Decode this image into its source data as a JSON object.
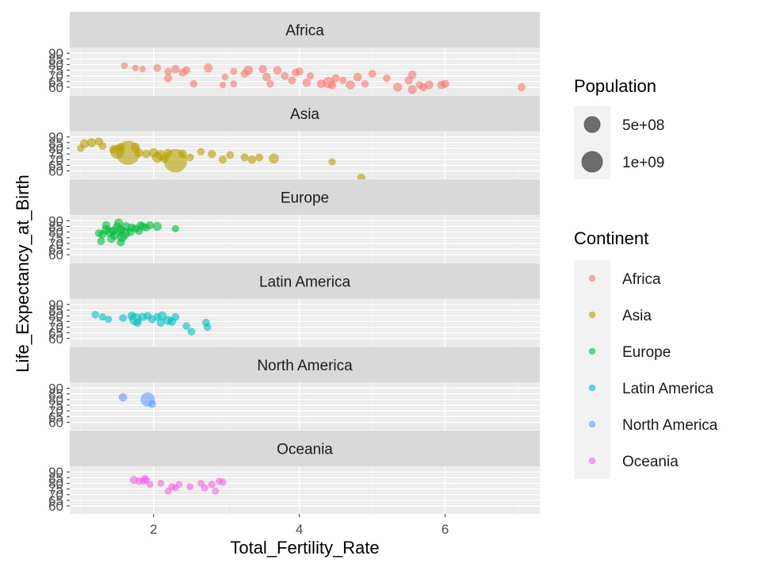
{
  "chart_data": {
    "type": "scatter",
    "facet_by": "Continent",
    "xlabel": "Total_Fertility_Rate",
    "ylabel": "Life_Expectancy_at_Birth",
    "xlim": [
      0.85,
      7.3
    ],
    "x_ticks": [
      2,
      4,
      6
    ],
    "ylim": [
      53,
      95
    ],
    "y_ticks": [
      60,
      65,
      70,
      75,
      80,
      85,
      90
    ],
    "y_tick_labels": [
      "60",
      "65",
      "70",
      "75",
      "80",
      "85",
      "90"
    ],
    "point_alpha": 0.6,
    "colors": {
      "Africa": "#F8766D",
      "Asia": "#B79F00",
      "Europe": "#00BA38",
      "Latin America": "#00BFC4",
      "North America": "#619CFF",
      "Oceania": "#F564E3"
    },
    "facets": [
      {
        "name": "Africa",
        "points": [
          [
            1.6,
            79,
            10
          ],
          [
            1.75,
            77,
            8
          ],
          [
            1.85,
            76,
            7
          ],
          [
            2.05,
            77,
            30
          ],
          [
            2.2,
            74,
            25
          ],
          [
            2.3,
            76,
            40
          ],
          [
            2.2,
            68,
            40
          ],
          [
            2.4,
            73,
            35
          ],
          [
            2.45,
            75,
            30
          ],
          [
            2.55,
            63,
            25
          ],
          [
            2.75,
            77,
            60
          ],
          [
            2.95,
            62,
            10
          ],
          [
            2.98,
            69,
            12
          ],
          [
            3.1,
            63,
            15
          ],
          [
            3.1,
            74,
            15
          ],
          [
            3.25,
            72,
            40
          ],
          [
            3.3,
            75,
            70
          ],
          [
            3.5,
            76,
            40
          ],
          [
            3.55,
            69,
            50
          ],
          [
            3.6,
            63,
            25
          ],
          [
            3.7,
            75,
            45
          ],
          [
            3.8,
            70,
            30
          ],
          [
            3.9,
            66,
            35
          ],
          [
            3.95,
            73,
            30
          ],
          [
            4.0,
            74,
            35
          ],
          [
            4.1,
            64,
            40
          ],
          [
            4.15,
            70,
            20
          ],
          [
            4.3,
            63,
            50
          ],
          [
            4.45,
            62,
            40
          ],
          [
            4.5,
            68,
            35
          ],
          [
            4.6,
            66,
            20
          ],
          [
            4.7,
            62,
            60
          ],
          [
            4.8,
            69,
            50
          ],
          [
            4.9,
            63,
            25
          ],
          [
            5.0,
            72,
            30
          ],
          [
            5.2,
            68,
            25
          ],
          [
            5.35,
            60,
            60
          ],
          [
            5.5,
            66,
            40
          ],
          [
            5.55,
            58,
            60
          ],
          [
            5.55,
            71,
            45
          ],
          [
            5.65,
            62,
            25
          ],
          [
            5.7,
            60,
            35
          ],
          [
            5.78,
            62,
            55
          ],
          [
            5.95,
            62,
            50
          ],
          [
            6.0,
            63,
            40
          ],
          [
            7.05,
            60,
            30
          ],
          [
            4.4,
            64,
            150
          ]
        ]
      },
      {
        "name": "Asia",
        "points": [
          [
            1.05,
            84,
            60
          ],
          [
            1.15,
            85,
            60
          ],
          [
            1.25,
            86,
            40
          ],
          [
            1.45,
            79,
            40
          ],
          [
            1.5,
            77,
            300
          ],
          [
            1.65,
            76,
            1400
          ],
          [
            1.75,
            81,
            60
          ],
          [
            1.8,
            76,
            60
          ],
          [
            1.9,
            75,
            40
          ],
          [
            2.0,
            76,
            80
          ],
          [
            2.05,
            72,
            120
          ],
          [
            2.1,
            74,
            100
          ],
          [
            2.15,
            71,
            50
          ],
          [
            2.2,
            76,
            40
          ],
          [
            2.3,
            69,
            1300
          ],
          [
            2.4,
            75,
            50
          ],
          [
            2.5,
            72,
            30
          ],
          [
            2.65,
            77,
            25
          ],
          [
            2.8,
            75,
            40
          ],
          [
            2.95,
            70,
            35
          ],
          [
            3.05,
            74,
            30
          ],
          [
            3.25,
            72,
            35
          ],
          [
            3.35,
            70,
            40
          ],
          [
            3.45,
            72,
            30
          ],
          [
            3.65,
            71,
            100
          ],
          [
            4.45,
            68,
            20
          ],
          [
            4.85,
            54,
            40
          ],
          [
            1.0,
            80,
            20
          ],
          [
            1.3,
            82,
            30
          ],
          [
            1.55,
            81,
            50
          ]
        ]
      },
      {
        "name": "Europe",
        "points": [
          [
            1.25,
            79,
            30
          ],
          [
            1.3,
            78,
            40
          ],
          [
            1.35,
            82,
            60
          ],
          [
            1.4,
            80,
            80
          ],
          [
            1.42,
            74,
            40
          ],
          [
            1.45,
            81,
            50
          ],
          [
            1.5,
            84,
            70
          ],
          [
            1.52,
            88,
            60
          ],
          [
            1.55,
            82,
            50
          ],
          [
            1.57,
            76,
            100
          ],
          [
            1.6,
            79,
            145
          ],
          [
            1.62,
            85,
            50
          ],
          [
            1.68,
            80,
            40
          ],
          [
            1.7,
            84,
            40
          ],
          [
            1.75,
            83,
            40
          ],
          [
            1.8,
            81,
            30
          ],
          [
            1.82,
            86,
            30
          ],
          [
            1.85,
            85,
            40
          ],
          [
            1.9,
            84,
            30
          ],
          [
            1.95,
            86,
            40
          ],
          [
            2.05,
            85,
            60
          ],
          [
            2.3,
            83,
            20
          ],
          [
            1.47,
            77,
            50
          ],
          [
            1.35,
            86,
            40
          ],
          [
            1.28,
            72,
            30
          ],
          [
            1.55,
            71,
            40
          ]
        ]
      },
      {
        "name": "Latin America",
        "points": [
          [
            1.2,
            81,
            25
          ],
          [
            1.3,
            79,
            20
          ],
          [
            1.38,
            77,
            20
          ],
          [
            1.58,
            78,
            30
          ],
          [
            1.7,
            80,
            50
          ],
          [
            1.75,
            77,
            210
          ],
          [
            1.78,
            74,
            40
          ],
          [
            1.85,
            79,
            40
          ],
          [
            1.92,
            80,
            30
          ],
          [
            1.98,
            77,
            35
          ],
          [
            2.05,
            79,
            30
          ],
          [
            2.1,
            74,
            40
          ],
          [
            2.12,
            80,
            60
          ],
          [
            2.2,
            76,
            60
          ],
          [
            2.25,
            75,
            50
          ],
          [
            2.3,
            79,
            30
          ],
          [
            2.52,
            66,
            30
          ],
          [
            2.45,
            71,
            25
          ],
          [
            2.72,
            74,
            30
          ],
          [
            2.74,
            70,
            25
          ]
        ]
      },
      {
        "name": "North America",
        "points": [
          [
            1.58,
            82,
            45
          ],
          [
            1.92,
            80,
            330
          ],
          [
            1.98,
            76,
            30
          ]
        ]
      },
      {
        "name": "Oceania",
        "points": [
          [
            1.73,
            83,
            35
          ],
          [
            1.8,
            82,
            25
          ],
          [
            1.88,
            84,
            20
          ],
          [
            1.9,
            83,
            20
          ],
          [
            1.95,
            79,
            15
          ],
          [
            2.1,
            80,
            15
          ],
          [
            2.2,
            73,
            15
          ],
          [
            2.25,
            77,
            15
          ],
          [
            2.3,
            76,
            15
          ],
          [
            2.35,
            79,
            15
          ],
          [
            2.5,
            77,
            15
          ],
          [
            2.65,
            80,
            15
          ],
          [
            2.7,
            76,
            20
          ],
          [
            2.8,
            79,
            25
          ],
          [
            2.9,
            82,
            15
          ],
          [
            2.95,
            81,
            20
          ],
          [
            2.85,
            73,
            15
          ],
          [
            1.86,
            82,
            20
          ]
        ]
      }
    ],
    "legend_population": {
      "title": "Population",
      "entries": [
        {
          "label": "5e+08",
          "size_value": 500
        },
        {
          "label": "1e+09",
          "size_value": 1000
        }
      ]
    },
    "legend_continent": {
      "title": "Continent",
      "entries": [
        "Africa",
        "Asia",
        "Europe",
        "Latin America",
        "North America",
        "Oceania"
      ]
    }
  }
}
